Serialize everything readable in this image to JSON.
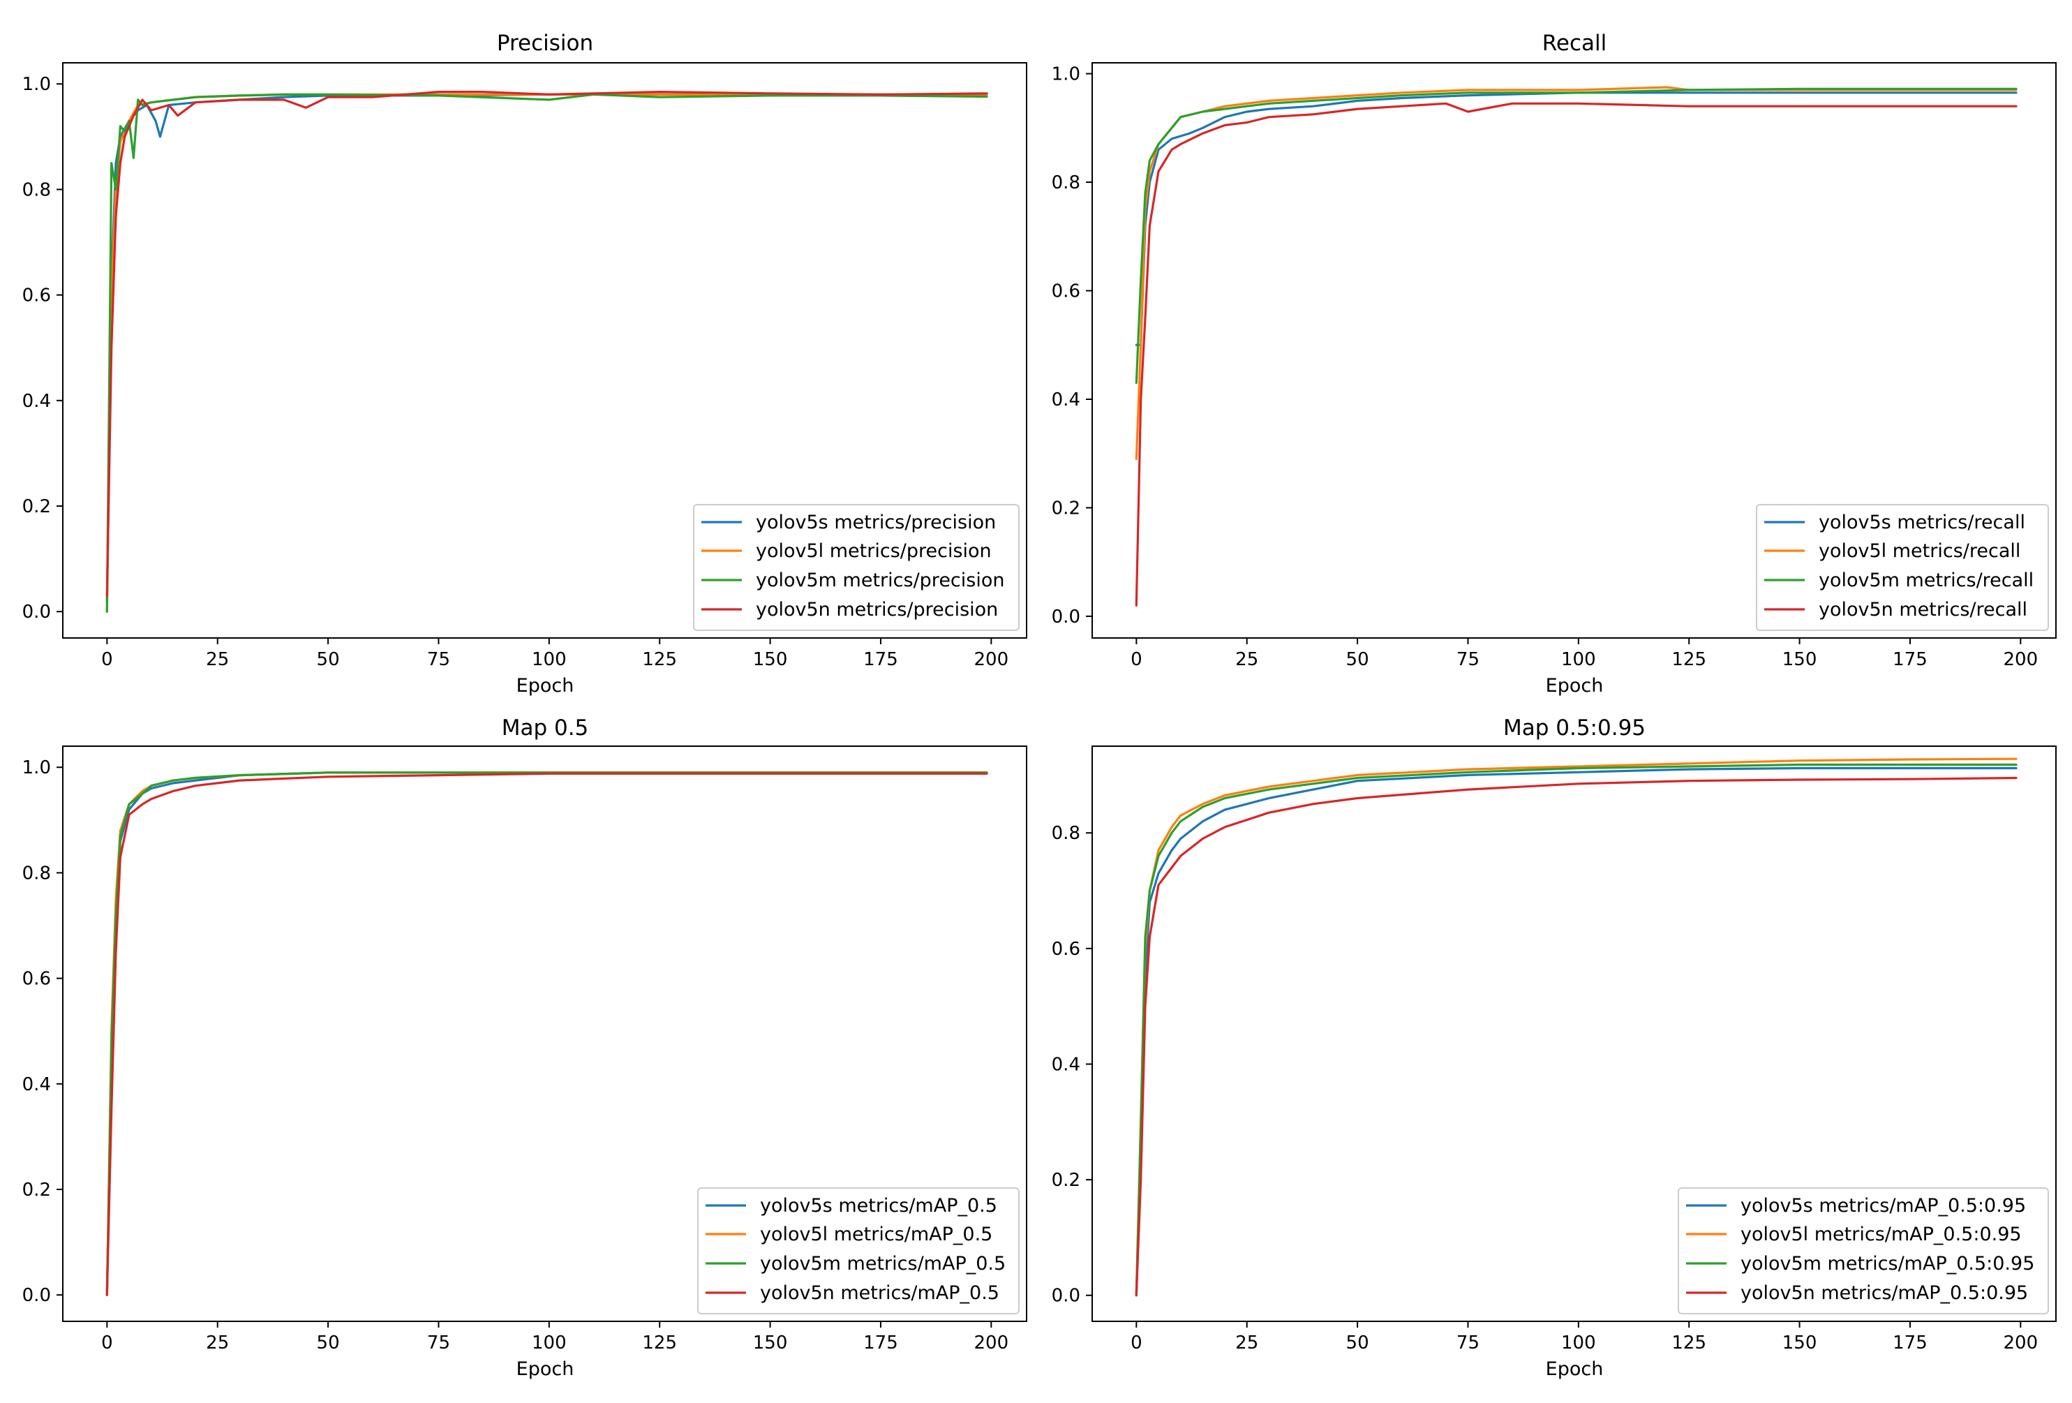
{
  "colors": {
    "yolov5s": "#1f77b4",
    "yolov5l": "#ff7f0e",
    "yolov5m": "#2ca02c",
    "yolov5n": "#d62728"
  },
  "chart_data": [
    {
      "type": "line",
      "title": "Precision",
      "xlabel": "Epoch",
      "ylabel": "",
      "xlim": [
        -10,
        208
      ],
      "ylim": [
        -0.05,
        1.04
      ],
      "xticks": [
        0,
        25,
        50,
        75,
        100,
        125,
        150,
        175,
        200
      ],
      "xtick_labels": [
        "0",
        "25",
        "50",
        "75",
        "100",
        "125",
        "150",
        "175",
        "200"
      ],
      "yticks": [
        0.0,
        0.2,
        0.4,
        0.6,
        0.8,
        1.0
      ],
      "ytick_labels": [
        "0.0",
        "0.2",
        "0.4",
        "0.6",
        "0.8",
        "1.0"
      ],
      "legend_position": "lower-right",
      "series": [
        {
          "name": "yolov5s metrics/precision",
          "key": "yolov5s",
          "x": [
            0,
            1,
            2,
            3,
            5,
            7,
            9,
            11,
            12,
            14,
            20,
            30,
            40,
            50,
            60,
            75,
            100,
            125,
            150,
            175,
            199
          ],
          "y": [
            0.02,
            0.62,
            0.85,
            0.9,
            0.93,
            0.95,
            0.96,
            0.93,
            0.9,
            0.96,
            0.965,
            0.97,
            0.975,
            0.978,
            0.978,
            0.978,
            0.98,
            0.98,
            0.98,
            0.98,
            0.98
          ]
        },
        {
          "name": "yolov5l metrics/precision",
          "key": "yolov5l",
          "x": [
            0,
            1,
            2,
            3,
            5,
            7,
            10,
            15,
            20,
            30,
            40,
            50,
            75,
            100,
            125,
            150,
            175,
            199
          ],
          "y": [
            0.0,
            0.6,
            0.8,
            0.89,
            0.93,
            0.96,
            0.965,
            0.97,
            0.975,
            0.978,
            0.98,
            0.98,
            0.98,
            0.98,
            0.98,
            0.98,
            0.98,
            0.98
          ]
        },
        {
          "name": "yolov5m metrics/precision",
          "key": "yolov5m",
          "x": [
            0,
            1,
            2,
            3,
            4,
            5,
            6,
            7,
            8,
            10,
            15,
            20,
            30,
            40,
            50,
            75,
            100,
            110,
            125,
            150,
            175,
            199
          ],
          "y": [
            0.0,
            0.85,
            0.8,
            0.92,
            0.91,
            0.93,
            0.86,
            0.97,
            0.96,
            0.965,
            0.97,
            0.975,
            0.978,
            0.98,
            0.98,
            0.978,
            0.97,
            0.98,
            0.975,
            0.978,
            0.978,
            0.976
          ]
        },
        {
          "name": "yolov5n metrics/precision",
          "key": "yolov5n",
          "x": [
            0,
            1,
            2,
            3,
            4,
            6,
            8,
            10,
            14,
            16,
            20,
            30,
            40,
            45,
            50,
            60,
            75,
            85,
            100,
            125,
            150,
            175,
            199
          ],
          "y": [
            0.03,
            0.5,
            0.75,
            0.85,
            0.9,
            0.94,
            0.97,
            0.95,
            0.96,
            0.94,
            0.965,
            0.97,
            0.97,
            0.955,
            0.975,
            0.975,
            0.985,
            0.985,
            0.98,
            0.985,
            0.982,
            0.98,
            0.982
          ]
        }
      ]
    },
    {
      "type": "line",
      "title": "Recall",
      "xlabel": "Epoch",
      "ylabel": "",
      "xlim": [
        -10,
        208
      ],
      "ylim": [
        -0.04,
        1.02
      ],
      "xticks": [
        0,
        25,
        50,
        75,
        100,
        125,
        150,
        175,
        200
      ],
      "xtick_labels": [
        "0",
        "25",
        "50",
        "75",
        "100",
        "125",
        "150",
        "175",
        "200"
      ],
      "yticks": [
        0.0,
        0.2,
        0.4,
        0.6,
        0.8,
        1.0
      ],
      "ytick_labels": [
        "0.0",
        "0.2",
        "0.4",
        "0.6",
        "0.8",
        "1.0"
      ],
      "legend_position": "lower-right",
      "series": [
        {
          "name": "yolov5s metrics/recall",
          "key": "yolov5s",
          "x": [
            0,
            1,
            2,
            3,
            5,
            8,
            12,
            15,
            20,
            25,
            30,
            40,
            50,
            60,
            75,
            100,
            125,
            150,
            175,
            199
          ],
          "y": [
            0.5,
            0.5,
            0.72,
            0.8,
            0.86,
            0.88,
            0.89,
            0.9,
            0.92,
            0.93,
            0.935,
            0.94,
            0.95,
            0.955,
            0.96,
            0.965,
            0.965,
            0.965,
            0.965,
            0.965
          ]
        },
        {
          "name": "yolov5l metrics/recall",
          "key": "yolov5l",
          "x": [
            0,
            1,
            2,
            3,
            5,
            8,
            10,
            15,
            20,
            30,
            40,
            50,
            60,
            75,
            100,
            120,
            125,
            150,
            175,
            199
          ],
          "y": [
            0.29,
            0.5,
            0.75,
            0.82,
            0.87,
            0.9,
            0.92,
            0.93,
            0.94,
            0.95,
            0.955,
            0.96,
            0.965,
            0.97,
            0.97,
            0.975,
            0.97,
            0.97,
            0.97,
            0.97
          ]
        },
        {
          "name": "yolov5m metrics/recall",
          "key": "yolov5m",
          "x": [
            0,
            1,
            2,
            3,
            5,
            8,
            10,
            15,
            20,
            30,
            40,
            50,
            60,
            75,
            100,
            125,
            150,
            175,
            199
          ],
          "y": [
            0.43,
            0.62,
            0.78,
            0.84,
            0.87,
            0.9,
            0.92,
            0.93,
            0.935,
            0.945,
            0.95,
            0.955,
            0.96,
            0.965,
            0.965,
            0.97,
            0.972,
            0.972,
            0.972
          ]
        },
        {
          "name": "yolov5n metrics/recall",
          "key": "yolov5n",
          "x": [
            0,
            1,
            2,
            3,
            5,
            8,
            10,
            15,
            20,
            25,
            30,
            40,
            50,
            60,
            70,
            75,
            85,
            100,
            125,
            150,
            175,
            199
          ],
          "y": [
            0.02,
            0.4,
            0.55,
            0.72,
            0.82,
            0.86,
            0.87,
            0.89,
            0.905,
            0.91,
            0.92,
            0.925,
            0.935,
            0.94,
            0.945,
            0.93,
            0.945,
            0.945,
            0.94,
            0.94,
            0.94,
            0.94
          ]
        }
      ]
    },
    {
      "type": "line",
      "title": "Map 0.5",
      "xlabel": "Epoch",
      "ylabel": "",
      "xlim": [
        -10,
        208
      ],
      "ylim": [
        -0.05,
        1.04
      ],
      "xticks": [
        0,
        25,
        50,
        75,
        100,
        125,
        150,
        175,
        200
      ],
      "xtick_labels": [
        "0",
        "25",
        "50",
        "75",
        "100",
        "125",
        "150",
        "175",
        "200"
      ],
      "yticks": [
        0.0,
        0.2,
        0.4,
        0.6,
        0.8,
        1.0
      ],
      "ytick_labels": [
        "0.0",
        "0.2",
        "0.4",
        "0.6",
        "0.8",
        "1.0"
      ],
      "legend_position": "lower-right",
      "series": [
        {
          "name": "yolov5s metrics/mAP_0.5",
          "key": "yolov5s",
          "x": [
            0,
            1,
            2,
            3,
            5,
            8,
            10,
            15,
            20,
            30,
            50,
            75,
            100,
            125,
            150,
            175,
            199
          ],
          "y": [
            0.0,
            0.45,
            0.7,
            0.86,
            0.92,
            0.95,
            0.96,
            0.97,
            0.975,
            0.985,
            0.99,
            0.99,
            0.99,
            0.99,
            0.99,
            0.99,
            0.99
          ]
        },
        {
          "name": "yolov5l metrics/mAP_0.5",
          "key": "yolov5l",
          "x": [
            0,
            1,
            2,
            3,
            5,
            8,
            10,
            15,
            20,
            30,
            50,
            75,
            100,
            125,
            150,
            175,
            199
          ],
          "y": [
            0.0,
            0.5,
            0.75,
            0.88,
            0.93,
            0.955,
            0.965,
            0.975,
            0.98,
            0.985,
            0.99,
            0.99,
            0.99,
            0.99,
            0.99,
            0.99,
            0.99
          ]
        },
        {
          "name": "yolov5m metrics/mAP_0.5",
          "key": "yolov5m",
          "x": [
            0,
            1,
            2,
            3,
            5,
            8,
            10,
            15,
            20,
            30,
            50,
            75,
            100,
            125,
            150,
            175,
            199
          ],
          "y": [
            0.0,
            0.48,
            0.72,
            0.87,
            0.93,
            0.95,
            0.965,
            0.975,
            0.98,
            0.985,
            0.99,
            0.99,
            0.99,
            0.99,
            0.99,
            0.99,
            0.99
          ]
        },
        {
          "name": "yolov5n metrics/mAP_0.5",
          "key": "yolov5n",
          "x": [
            0,
            1,
            2,
            3,
            5,
            8,
            10,
            15,
            20,
            30,
            50,
            75,
            100,
            125,
            150,
            175,
            199
          ],
          "y": [
            0.0,
            0.35,
            0.65,
            0.83,
            0.91,
            0.93,
            0.94,
            0.955,
            0.965,
            0.975,
            0.982,
            0.985,
            0.988,
            0.988,
            0.988,
            0.988,
            0.988
          ]
        }
      ]
    },
    {
      "type": "line",
      "title": "Map 0.5:0.95",
      "xlabel": "Epoch",
      "ylabel": "",
      "xlim": [
        -10,
        208
      ],
      "ylim": [
        -0.045,
        0.95
      ],
      "xticks": [
        0,
        25,
        50,
        75,
        100,
        125,
        150,
        175,
        200
      ],
      "xtick_labels": [
        "0",
        "25",
        "50",
        "75",
        "100",
        "125",
        "150",
        "175",
        "200"
      ],
      "yticks": [
        0.0,
        0.2,
        0.4,
        0.6,
        0.8
      ],
      "ytick_labels": [
        "0.0",
        "0.2",
        "0.4",
        "0.6",
        "0.8"
      ],
      "legend_position": "lower-right",
      "series": [
        {
          "name": "yolov5s metrics/mAP_0.5:0.95",
          "key": "yolov5s",
          "x": [
            0,
            1,
            2,
            3,
            5,
            8,
            10,
            15,
            20,
            30,
            40,
            50,
            75,
            100,
            125,
            150,
            175,
            199
          ],
          "y": [
            0.0,
            0.25,
            0.55,
            0.68,
            0.73,
            0.77,
            0.79,
            0.82,
            0.84,
            0.86,
            0.875,
            0.89,
            0.9,
            0.905,
            0.91,
            0.912,
            0.912,
            0.912
          ]
        },
        {
          "name": "yolov5l metrics/mAP_0.5:0.95",
          "key": "yolov5l",
          "x": [
            0,
            1,
            2,
            3,
            5,
            8,
            10,
            15,
            20,
            30,
            40,
            50,
            75,
            100,
            125,
            150,
            175,
            199
          ],
          "y": [
            0.0,
            0.3,
            0.6,
            0.7,
            0.77,
            0.81,
            0.83,
            0.85,
            0.865,
            0.88,
            0.89,
            0.9,
            0.91,
            0.915,
            0.92,
            0.925,
            0.927,
            0.928
          ]
        },
        {
          "name": "yolov5m metrics/mAP_0.5:0.95",
          "key": "yolov5m",
          "x": [
            0,
            1,
            2,
            3,
            5,
            8,
            10,
            15,
            20,
            30,
            40,
            50,
            75,
            100,
            125,
            150,
            175,
            199
          ],
          "y": [
            0.0,
            0.3,
            0.62,
            0.7,
            0.76,
            0.8,
            0.82,
            0.845,
            0.86,
            0.875,
            0.885,
            0.895,
            0.905,
            0.912,
            0.915,
            0.918,
            0.918,
            0.918
          ]
        },
        {
          "name": "yolov5n metrics/mAP_0.5:0.95",
          "key": "yolov5n",
          "x": [
            0,
            1,
            2,
            3,
            5,
            8,
            10,
            15,
            20,
            30,
            40,
            50,
            75,
            100,
            125,
            150,
            175,
            199
          ],
          "y": [
            0.0,
            0.2,
            0.5,
            0.62,
            0.71,
            0.74,
            0.76,
            0.79,
            0.81,
            0.835,
            0.85,
            0.86,
            0.875,
            0.885,
            0.89,
            0.892,
            0.893,
            0.895
          ]
        }
      ]
    }
  ]
}
